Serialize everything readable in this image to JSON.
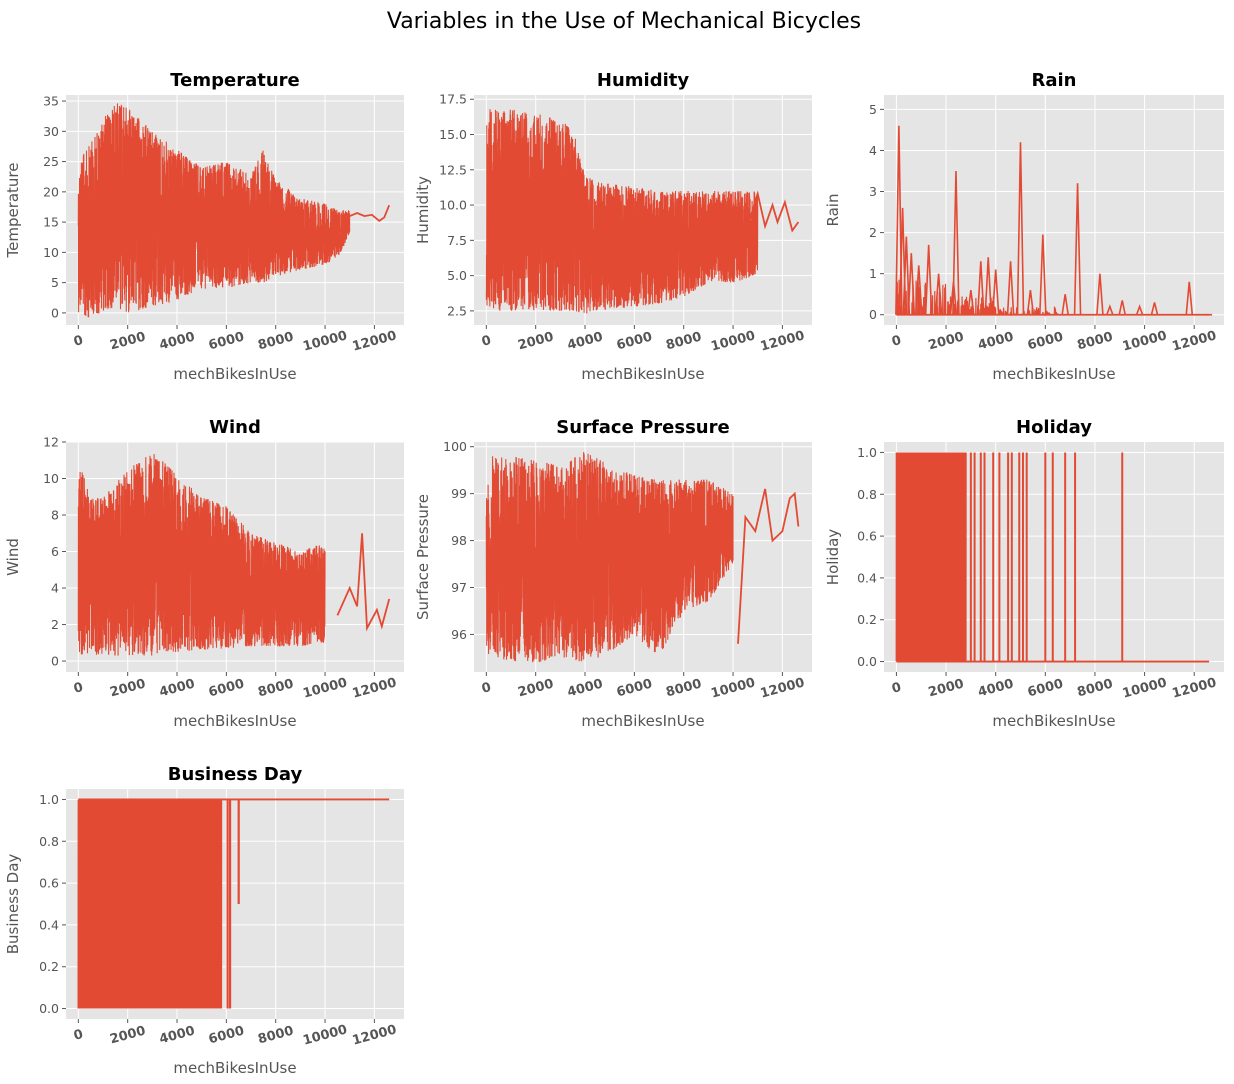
{
  "figure": {
    "title": "Variables in the Use of Mechanical Bicycles",
    "background": "#ffffff",
    "panel_background": "#e5e5e5",
    "grid_color": "#ffffff",
    "line_color": "#e24a33"
  },
  "chart_data": [
    {
      "type": "line",
      "title": "Temperature",
      "xlabel": "mechBikesInUse",
      "ylabel": "Temperature",
      "xlim": [
        -500,
        13200
      ],
      "ylim": [
        -2,
        36
      ],
      "xticks": [
        0,
        2000,
        4000,
        6000,
        8000,
        10000,
        12000
      ],
      "xtick_labels": [
        "0",
        "2000",
        "4000",
        "6000",
        "8000",
        "10000",
        "12000"
      ],
      "yticks": [
        0,
        5,
        10,
        15,
        20,
        25,
        30,
        35
      ],
      "ytick_labels": [
        "0",
        "5",
        "10",
        "15",
        "20",
        "25",
        "30",
        "35"
      ],
      "grid": true,
      "series": [
        {
          "values_summary": "dense oscillation between per-x min and max",
          "envelope": [
            {
              "x": 0,
              "min": 0,
              "max": 25
            },
            {
              "x": 500,
              "min": -1,
              "max": 28
            },
            {
              "x": 1000,
              "min": 0,
              "max": 32
            },
            {
              "x": 1500,
              "min": 1,
              "max": 34.8
            },
            {
              "x": 2000,
              "min": 0,
              "max": 34
            },
            {
              "x": 3000,
              "min": 1,
              "max": 30
            },
            {
              "x": 4000,
              "min": 2,
              "max": 27
            },
            {
              "x": 5000,
              "min": 4,
              "max": 24
            },
            {
              "x": 6000,
              "min": 4,
              "max": 25
            },
            {
              "x": 7000,
              "min": 5,
              "max": 23
            },
            {
              "x": 7500,
              "min": 5,
              "max": 27
            },
            {
              "x": 8000,
              "min": 6,
              "max": 22
            },
            {
              "x": 9000,
              "min": 7,
              "max": 19
            },
            {
              "x": 10000,
              "min": 8,
              "max": 18
            },
            {
              "x": 10500,
              "min": 9,
              "max": 17
            },
            {
              "x": 11000,
              "min": 13,
              "max": 17
            }
          ],
          "tail": [
            {
              "x": 10200,
              "y": 14
            },
            {
              "x": 10500,
              "y": 12.5
            },
            {
              "x": 10800,
              "y": 15
            },
            {
              "x": 11000,
              "y": 16
            },
            {
              "x": 11300,
              "y": 16.5
            },
            {
              "x": 11600,
              "y": 16
            },
            {
              "x": 11900,
              "y": 16.2
            },
            {
              "x": 12200,
              "y": 15.2
            },
            {
              "x": 12400,
              "y": 15.8
            },
            {
              "x": 12600,
              "y": 17.8
            }
          ]
        }
      ]
    },
    {
      "type": "line",
      "title": "Humidity",
      "xlabel": "mechBikesInUse",
      "ylabel": "Humidity",
      "xlim": [
        -500,
        13200
      ],
      "ylim": [
        1.5,
        17.8
      ],
      "xticks": [
        0,
        2000,
        4000,
        6000,
        8000,
        10000,
        12000
      ],
      "xtick_labels": [
        "0",
        "2000",
        "4000",
        "6000",
        "8000",
        "10000",
        "12000"
      ],
      "yticks": [
        2.5,
        5.0,
        7.5,
        10.0,
        12.5,
        15.0,
        17.5
      ],
      "ytick_labels": [
        "2.5",
        "5.0",
        "7.5",
        "10.0",
        "12.5",
        "15.0",
        "17.5"
      ],
      "grid": true,
      "series": [
        {
          "values_summary": "dense oscillation between per-x min and max",
          "envelope": [
            {
              "x": 0,
              "min": 2.5,
              "max": 16.8
            },
            {
              "x": 1000,
              "min": 2.5,
              "max": 16.8
            },
            {
              "x": 2000,
              "min": 2.5,
              "max": 16.5
            },
            {
              "x": 3000,
              "min": 2.5,
              "max": 16
            },
            {
              "x": 3500,
              "min": 2.5,
              "max": 15.5
            },
            {
              "x": 4000,
              "min": 2.3,
              "max": 12
            },
            {
              "x": 5000,
              "min": 2.6,
              "max": 11.5
            },
            {
              "x": 6000,
              "min": 2.8,
              "max": 11.3
            },
            {
              "x": 7000,
              "min": 3,
              "max": 11
            },
            {
              "x": 8000,
              "min": 3.5,
              "max": 11
            },
            {
              "x": 9000,
              "min": 4.5,
              "max": 11
            },
            {
              "x": 10000,
              "min": 4.5,
              "max": 11
            },
            {
              "x": 11000,
              "min": 5,
              "max": 11
            }
          ],
          "tail": [
            {
              "x": 10500,
              "y": 8
            },
            {
              "x": 11000,
              "y": 10.8
            },
            {
              "x": 11300,
              "y": 8.5
            },
            {
              "x": 11600,
              "y": 10
            },
            {
              "x": 11800,
              "y": 8.8
            },
            {
              "x": 12100,
              "y": 10.2
            },
            {
              "x": 12400,
              "y": 8.2
            },
            {
              "x": 12650,
              "y": 8.8
            }
          ]
        }
      ]
    },
    {
      "type": "line",
      "title": "Rain",
      "xlabel": "mechBikesInUse",
      "ylabel": "Rain",
      "xlim": [
        -500,
        13200
      ],
      "ylim": [
        -0.25,
        5.35
      ],
      "xticks": [
        0,
        2000,
        4000,
        6000,
        8000,
        10000,
        12000
      ],
      "xtick_labels": [
        "0",
        "2000",
        "4000",
        "6000",
        "8000",
        "10000",
        "12000"
      ],
      "yticks": [
        0,
        1,
        2,
        3,
        4,
        5
      ],
      "ytick_labels": [
        "0",
        "1",
        "2",
        "3",
        "4",
        "5"
      ],
      "grid": true,
      "series": [
        {
          "baseline": 0,
          "spikes": [
            {
              "x": 100,
              "y": 4.6
            },
            {
              "x": 250,
              "y": 2.6
            },
            {
              "x": 400,
              "y": 1.9
            },
            {
              "x": 600,
              "y": 1.5
            },
            {
              "x": 900,
              "y": 1.2
            },
            {
              "x": 1300,
              "y": 1.7
            },
            {
              "x": 1700,
              "y": 1.0
            },
            {
              "x": 2300,
              "y": 0.8
            },
            {
              "x": 2400,
              "y": 3.5
            },
            {
              "x": 3000,
              "y": 0.6
            },
            {
              "x": 3400,
              "y": 1.3
            },
            {
              "x": 3700,
              "y": 1.4
            },
            {
              "x": 4000,
              "y": 1.1
            },
            {
              "x": 4600,
              "y": 1.3
            },
            {
              "x": 5000,
              "y": 4.2
            },
            {
              "x": 5400,
              "y": 0.6
            },
            {
              "x": 5900,
              "y": 1.95
            },
            {
              "x": 6800,
              "y": 0.5
            },
            {
              "x": 7300,
              "y": 3.2
            },
            {
              "x": 8200,
              "y": 1.0
            },
            {
              "x": 8600,
              "y": 0.2
            },
            {
              "x": 9100,
              "y": 0.35
            },
            {
              "x": 9800,
              "y": 0.2
            },
            {
              "x": 10400,
              "y": 0.3
            },
            {
              "x": 11800,
              "y": 0.8
            },
            {
              "x": 12600,
              "y": 0
            }
          ]
        }
      ]
    },
    {
      "type": "line",
      "title": "Wind",
      "xlabel": "mechBikesInUse",
      "ylabel": "Wind",
      "xlim": [
        -500,
        13200
      ],
      "ylim": [
        -0.6,
        12
      ],
      "xticks": [
        0,
        2000,
        4000,
        6000,
        8000,
        10000,
        12000
      ],
      "xtick_labels": [
        "0",
        "2000",
        "4000",
        "6000",
        "8000",
        "10000",
        "12000"
      ],
      "yticks": [
        0,
        2,
        4,
        6,
        8,
        10,
        12
      ],
      "ytick_labels": [
        "0",
        "2",
        "4",
        "6",
        "8",
        "10",
        "12"
      ],
      "grid": true,
      "series": [
        {
          "values_summary": "dense oscillation between per-x min and max",
          "envelope": [
            {
              "x": 0,
              "min": 0.3,
              "max": 11
            },
            {
              "x": 500,
              "min": 0.3,
              "max": 9
            },
            {
              "x": 1000,
              "min": 0.3,
              "max": 9
            },
            {
              "x": 2000,
              "min": 0.3,
              "max": 10.5
            },
            {
              "x": 3000,
              "min": 0.3,
              "max": 11.5
            },
            {
              "x": 4000,
              "min": 0.5,
              "max": 10.2
            },
            {
              "x": 5000,
              "min": 0.6,
              "max": 9
            },
            {
              "x": 6000,
              "min": 0.7,
              "max": 8.5
            },
            {
              "x": 7000,
              "min": 0.8,
              "max": 7
            },
            {
              "x": 8000,
              "min": 0.8,
              "max": 6.5
            },
            {
              "x": 9000,
              "min": 0.8,
              "max": 6
            },
            {
              "x": 10000,
              "min": 1,
              "max": 6.5
            }
          ],
          "tail": [
            {
              "x": 10500,
              "y": 2.5
            },
            {
              "x": 11000,
              "y": 4
            },
            {
              "x": 11300,
              "y": 3
            },
            {
              "x": 11500,
              "y": 7
            },
            {
              "x": 11700,
              "y": 1.8
            },
            {
              "x": 12100,
              "y": 2.8
            },
            {
              "x": 12300,
              "y": 1.9
            },
            {
              "x": 12600,
              "y": 3.4
            }
          ]
        }
      ]
    },
    {
      "type": "line",
      "title": "Surface Pressure",
      "xlabel": "mechBikesInUse",
      "ylabel": "Surface Pressure",
      "xlim": [
        -500,
        13200
      ],
      "ylim": [
        95.2,
        100.1
      ],
      "xticks": [
        0,
        2000,
        4000,
        6000,
        8000,
        10000,
        12000
      ],
      "xtick_labels": [
        "0",
        "2000",
        "4000",
        "6000",
        "8000",
        "10000",
        "12000"
      ],
      "yticks": [
        96,
        97,
        98,
        99,
        100
      ],
      "ytick_labels": [
        "96",
        "97",
        "98",
        "99",
        "100"
      ],
      "grid": true,
      "series": [
        {
          "values_summary": "dense oscillation between per-x min and max",
          "envelope": [
            {
              "x": 0,
              "min": 95.6,
              "max": 99.8
            },
            {
              "x": 1000,
              "min": 95.4,
              "max": 99.8
            },
            {
              "x": 2000,
              "min": 95.4,
              "max": 99.7
            },
            {
              "x": 3000,
              "min": 95.5,
              "max": 99.6
            },
            {
              "x": 4000,
              "min": 95.4,
              "max": 99.9
            },
            {
              "x": 5000,
              "min": 95.6,
              "max": 99.6
            },
            {
              "x": 6000,
              "min": 96.0,
              "max": 99.4
            },
            {
              "x": 7000,
              "min": 95.5,
              "max": 99.3
            },
            {
              "x": 8000,
              "min": 96.5,
              "max": 99.3
            },
            {
              "x": 9000,
              "min": 96.7,
              "max": 99.3
            },
            {
              "x": 10000,
              "min": 97.5,
              "max": 99.0
            }
          ],
          "tail": [
            {
              "x": 10200,
              "y": 95.8
            },
            {
              "x": 10500,
              "y": 98.5
            },
            {
              "x": 10900,
              "y": 98.2
            },
            {
              "x": 11300,
              "y": 99.1
            },
            {
              "x": 11600,
              "y": 98.0
            },
            {
              "x": 12000,
              "y": 98.2
            },
            {
              "x": 12300,
              "y": 98.9
            },
            {
              "x": 12500,
              "y": 99.0
            },
            {
              "x": 12650,
              "y": 98.3
            }
          ]
        }
      ]
    },
    {
      "type": "line",
      "title": "Holiday",
      "xlabel": "mechBikesInUse",
      "ylabel": "Holiday",
      "xlim": [
        -500,
        13200
      ],
      "ylim": [
        -0.05,
        1.05
      ],
      "xticks": [
        0,
        2000,
        4000,
        6000,
        8000,
        10000,
        12000
      ],
      "xtick_labels": [
        "0",
        "2000",
        "4000",
        "6000",
        "8000",
        "10000",
        "12000"
      ],
      "yticks": [
        0.0,
        0.2,
        0.4,
        0.6,
        0.8,
        1.0
      ],
      "ytick_labels": [
        "0.0",
        "0.2",
        "0.4",
        "0.6",
        "0.8",
        "1.0"
      ],
      "grid": true,
      "series": [
        {
          "baseline": 0,
          "dense_band": {
            "from": 0,
            "to": 2800,
            "min": 0,
            "max": 1
          },
          "spikes_to_one_x": [
            3000,
            3150,
            3400,
            3550,
            3900,
            4150,
            4500,
            4650,
            4950,
            5100,
            5250,
            6000,
            6300,
            6800,
            7200,
            9100
          ]
        }
      ]
    },
    {
      "type": "line",
      "title": "Business Day",
      "xlabel": "mechBikesInUse",
      "ylabel": "Business Day",
      "xlim": [
        -500,
        13200
      ],
      "ylim": [
        -0.05,
        1.05
      ],
      "xticks": [
        0,
        2000,
        4000,
        6000,
        8000,
        10000,
        12000
      ],
      "xtick_labels": [
        "0",
        "2000",
        "4000",
        "6000",
        "8000",
        "10000",
        "12000"
      ],
      "yticks": [
        0.0,
        0.2,
        0.4,
        0.6,
        0.8,
        1.0
      ],
      "ytick_labels": [
        "0.0",
        "0.2",
        "0.4",
        "0.6",
        "0.8",
        "1.0"
      ],
      "grid": true,
      "series": [
        {
          "baseline": 1,
          "dense_band": {
            "from": 0,
            "to": 5800,
            "min": 0,
            "max": 1
          },
          "dips": [
            {
              "x": 6050,
              "y": 0
            },
            {
              "x": 6150,
              "y": 0
            },
            {
              "x": 6500,
              "y": 0.5
            }
          ],
          "end_x": 12600
        }
      ]
    }
  ]
}
